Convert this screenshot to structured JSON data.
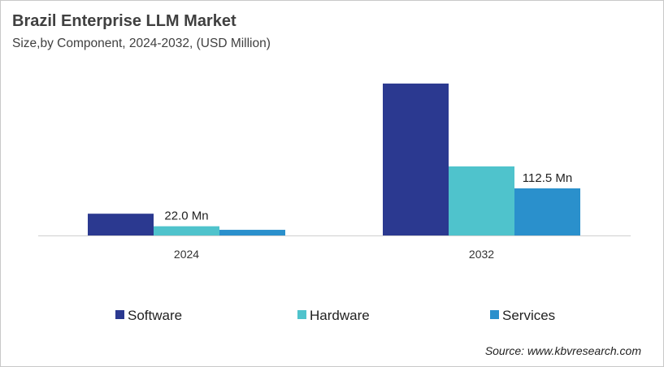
{
  "chart_data": {
    "type": "bar",
    "title": "Brazil Enterprise LLM Market",
    "subtitle": "Size,by Component, 2024-2032, (USD Million)",
    "categories": [
      "2024",
      "2032"
    ],
    "series": [
      {
        "name": "Software",
        "color": "#2b3990",
        "values": [
          52,
          363
        ],
        "labels": [
          null,
          null
        ]
      },
      {
        "name": "Hardware",
        "color": "#4fc3cc",
        "values": [
          22.0,
          165
        ],
        "labels": [
          "22.0 Mn",
          null
        ]
      },
      {
        "name": "Services",
        "color": "#2a90cc",
        "values": [
          13.5,
          112.5
        ],
        "labels": [
          null,
          "112.5 Mn"
        ]
      }
    ],
    "ylim": [
      0,
      388
    ],
    "grid": false,
    "legend": "bottom",
    "source": "Source: www.kbvresearch.com"
  }
}
